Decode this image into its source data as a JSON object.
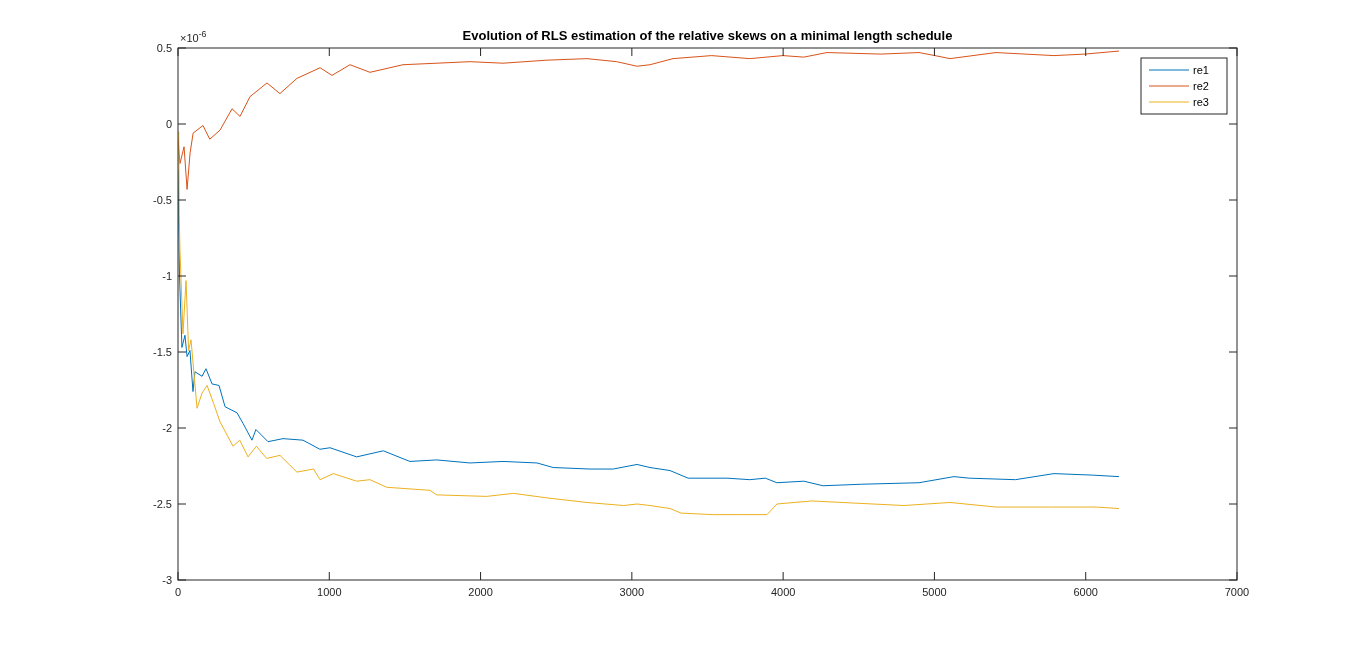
{
  "chart_data": {
    "type": "line",
    "title": "Evolution of RLS estimation of the relative skews on a minimal length schedule",
    "annotations": [
      "×10$^{-6}$"
    ],
    "xlim": [
      0,
      7000
    ],
    "xticks": [
      0,
      1000,
      2000,
      3000,
      4000,
      5000,
      6000,
      7000
    ],
    "ylim": [
      -3,
      0.5
    ],
    "yticks": [
      -3,
      -2.5,
      -2,
      -1.5,
      -1,
      -0.5,
      0,
      0.5
    ],
    "legend": "top right",
    "grid": false,
    "marker": "none",
    "line_style": "solid",
    "series": [
      {
        "name": "re1",
        "color": "#0072bd",
        "x": [
          0,
          10,
          26,
          46,
          60,
          79,
          99,
          112,
          159,
          185,
          225,
          271,
          311,
          390,
          430,
          489,
          515,
          595,
          694,
          826,
          938,
          1005,
          1181,
          1357,
          1533,
          1710,
          1930,
          2148,
          2373,
          2480,
          2723,
          2877,
          3034,
          3120,
          3252,
          3372,
          3629,
          3780,
          3882,
          3959,
          4137,
          4263,
          4517,
          4898,
          5129,
          5230,
          5535,
          5790,
          6045,
          6220
        ],
        "values": [
          -0.3,
          -1.0,
          -1.47,
          -1.39,
          -1.53,
          -1.49,
          -1.76,
          -1.63,
          -1.66,
          -1.61,
          -1.71,
          -1.72,
          -1.86,
          -1.9,
          -1.97,
          -2.08,
          -2.01,
          -2.09,
          -2.07,
          -2.08,
          -2.14,
          -2.13,
          -2.19,
          -2.15,
          -2.22,
          -2.21,
          -2.23,
          -2.22,
          -2.23,
          -2.26,
          -2.27,
          -2.27,
          -2.24,
          -2.26,
          -2.28,
          -2.33,
          -2.33,
          -2.34,
          -2.33,
          -2.36,
          -2.35,
          -2.38,
          -2.37,
          -2.36,
          -2.32,
          -2.33,
          -2.34,
          -2.3,
          -2.31,
          -2.32
        ]
      },
      {
        "name": "re2",
        "color": "#d95319",
        "x": [
          0,
          13,
          40,
          60,
          80,
          100,
          165,
          210,
          278,
          357,
          410,
          476,
          588,
          674,
          786,
          939,
          1018,
          1137,
          1269,
          1487,
          1712,
          1930,
          2148,
          2439,
          2703,
          2900,
          3034,
          3120,
          3272,
          3526,
          3780,
          3999,
          4137,
          4290,
          4646,
          4898,
          5003,
          5103,
          5407,
          5790,
          5995,
          6220
        ],
        "values": [
          -0.1,
          -0.26,
          -0.15,
          -0.43,
          -0.19,
          -0.06,
          -0.01,
          -0.1,
          -0.04,
          0.1,
          0.05,
          0.18,
          0.27,
          0.2,
          0.3,
          0.37,
          0.32,
          0.39,
          0.34,
          0.39,
          0.4,
          0.41,
          0.4,
          0.42,
          0.43,
          0.41,
          0.38,
          0.39,
          0.43,
          0.45,
          0.43,
          0.45,
          0.44,
          0.47,
          0.46,
          0.47,
          0.45,
          0.43,
          0.47,
          0.45,
          0.46,
          0.48
        ]
      },
      {
        "name": "re3",
        "color": "#edb120",
        "x": [
          5,
          8,
          13,
          33,
          53,
          70,
          86,
          126,
          159,
          192,
          236,
          278,
          364,
          408,
          463,
          518,
          586,
          674,
          786,
          896,
          939,
          1027,
          1181,
          1269,
          1379,
          1665,
          1710,
          2040,
          2218,
          2440,
          2703,
          2946,
          3034,
          3120,
          3252,
          3326,
          3538,
          3728,
          3893,
          3959,
          4190,
          4390,
          4798,
          5103,
          5407,
          5761,
          6070,
          6220
        ],
        "values": [
          -0.05,
          -0.6,
          -0.83,
          -1.38,
          -1.03,
          -1.49,
          -1.42,
          -1.87,
          -1.77,
          -1.72,
          -1.84,
          -1.96,
          -2.12,
          -2.08,
          -2.19,
          -2.12,
          -2.2,
          -2.18,
          -2.29,
          -2.27,
          -2.34,
          -2.3,
          -2.35,
          -2.34,
          -2.39,
          -2.41,
          -2.44,
          -2.45,
          -2.43,
          -2.46,
          -2.49,
          -2.51,
          -2.5,
          -2.51,
          -2.53,
          -2.56,
          -2.57,
          -2.57,
          -2.57,
          -2.5,
          -2.48,
          -2.49,
          -2.51,
          -2.49,
          -2.52,
          -2.52,
          -2.52,
          -2.53
        ]
      }
    ]
  }
}
